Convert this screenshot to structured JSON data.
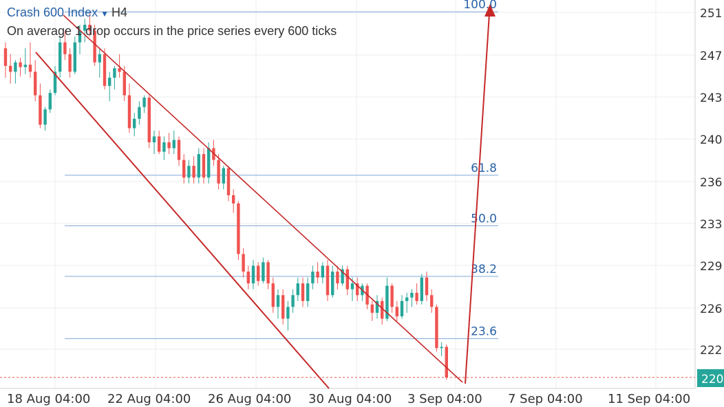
{
  "header": {
    "symbol": "Crash 600 Index",
    "timeframe": "H4",
    "description": "On average 1 drop occurs in the price series every 600 ticks"
  },
  "colors": {
    "up": "#26a69a",
    "down": "#ef5350",
    "line": "#c62828",
    "fib": "#7fa8d8",
    "fib_text": "#2962a8",
    "grid": "#eeeeee",
    "current_price_bg": "#26a69a"
  },
  "chart_data": {
    "type": "candlestick",
    "y_ticks": [
      "251",
      "247",
      "243",
      "240",
      "236",
      "233",
      "229",
      "226",
      "222"
    ],
    "current_price_label": "220",
    "x_ticks": [
      "18 Aug 04:00",
      "22 Aug 04:00",
      "26 Aug 04:00",
      "30 Aug 04:00",
      "3 Sep 04:00",
      "7 Sep 04:00",
      "11 Sep 04:00"
    ],
    "fib_levels": [
      {
        "label": "100.0",
        "price": 251.1
      },
      {
        "label": "61.8",
        "price": 237.2
      },
      {
        "label": "50.0",
        "price": 232.9
      },
      {
        "label": "38.2",
        "price": 228.6
      },
      {
        "label": "23.6",
        "price": 223.3
      }
    ],
    "ohlc": [
      [
        248.0,
        248.5,
        245.5,
        246.5
      ],
      [
        246.5,
        247.5,
        245.0,
        246.0
      ],
      [
        246.0,
        247.0,
        245.0,
        246.8
      ],
      [
        246.8,
        247.2,
        245.6,
        246.4
      ],
      [
        246.4,
        248.0,
        245.8,
        246.6
      ],
      [
        246.6,
        248.5,
        245.5,
        246.0
      ],
      [
        246.0,
        247.0,
        243.5,
        244.0
      ],
      [
        244.0,
        245.0,
        241.2,
        241.5
      ],
      [
        241.5,
        243.0,
        241.0,
        242.8
      ],
      [
        242.8,
        244.5,
        242.5,
        244.2
      ],
      [
        244.2,
        246.5,
        244.0,
        246.0
      ],
      [
        246.0,
        249.0,
        245.5,
        248.5
      ],
      [
        248.5,
        249.5,
        247.0,
        247.5
      ],
      [
        247.5,
        248.0,
        245.5,
        246.0
      ],
      [
        246.0,
        249.0,
        245.8,
        248.5
      ],
      [
        248.5,
        250.0,
        247.5,
        249.5
      ],
      [
        249.5,
        250.5,
        248.5,
        250.0
      ],
      [
        250.0,
        251.0,
        249.0,
        249.5
      ],
      [
        249.5,
        250.0,
        246.5,
        246.8
      ],
      [
        246.8,
        248.0,
        245.5,
        247.5
      ],
      [
        247.5,
        248.0,
        244.5,
        244.8
      ],
      [
        244.8,
        246.0,
        243.5,
        245.5
      ],
      [
        245.5,
        246.5,
        244.5,
        246.3
      ],
      [
        246.3,
        247.5,
        245.5,
        246.0
      ],
      [
        246.0,
        246.5,
        243.5,
        244.0
      ],
      [
        244.0,
        245.0,
        240.8,
        241.2
      ],
      [
        241.2,
        242.5,
        240.5,
        242.0
      ],
      [
        242.0,
        243.5,
        241.5,
        243.0
      ],
      [
        243.0,
        244.0,
        242.5,
        243.8
      ],
      [
        243.8,
        244.0,
        239.5,
        240.0
      ],
      [
        240.0,
        241.0,
        239.0,
        240.5
      ],
      [
        240.5,
        241.0,
        239.0,
        239.2
      ],
      [
        239.2,
        240.5,
        238.5,
        240.0
      ],
      [
        240.0,
        240.8,
        239.0,
        239.5
      ],
      [
        239.5,
        241.0,
        239.0,
        240.2
      ],
      [
        240.2,
        240.5,
        238.0,
        238.5
      ],
      [
        238.5,
        239.0,
        236.5,
        237.0
      ],
      [
        237.0,
        238.5,
        236.5,
        238.0
      ],
      [
        238.0,
        238.8,
        236.5,
        237.0
      ],
      [
        237.0,
        239.5,
        236.5,
        239.0
      ],
      [
        239.0,
        239.5,
        236.5,
        237.0
      ],
      [
        237.0,
        240.0,
        236.5,
        239.5
      ],
      [
        239.5,
        240.2,
        238.0,
        238.5
      ],
      [
        238.5,
        239.0,
        236.0,
        236.5
      ],
      [
        236.5,
        238.0,
        236.0,
        237.8
      ],
      [
        237.8,
        238.0,
        235.0,
        235.5
      ],
      [
        235.5,
        236.0,
        234.0,
        234.8
      ],
      [
        234.8,
        235.0,
        230.0,
        230.5
      ],
      [
        230.5,
        231.0,
        228.5,
        229.0
      ],
      [
        229.0,
        229.5,
        227.5,
        228.0
      ],
      [
        228.0,
        230.0,
        227.5,
        229.5
      ],
      [
        229.5,
        229.8,
        227.8,
        228.2
      ],
      [
        228.2,
        230.2,
        228.0,
        229.8
      ],
      [
        229.8,
        230.0,
        227.5,
        228.0
      ],
      [
        228.0,
        228.5,
        225.5,
        226.0
      ],
      [
        226.0,
        227.5,
        225.0,
        227.0
      ],
      [
        227.0,
        227.5,
        224.5,
        225.0
      ],
      [
        225.0,
        226.5,
        224.0,
        226.0
      ],
      [
        226.0,
        227.5,
        225.5,
        227.0
      ],
      [
        227.0,
        228.5,
        226.5,
        228.0
      ],
      [
        228.0,
        228.5,
        226.0,
        226.5
      ],
      [
        226.5,
        228.5,
        226.0,
        228.0
      ],
      [
        228.0,
        229.5,
        227.5,
        229.0
      ],
      [
        229.0,
        229.8,
        228.0,
        228.5
      ],
      [
        228.5,
        229.8,
        228.0,
        229.5
      ],
      [
        229.5,
        230.0,
        226.5,
        227.0
      ],
      [
        227.0,
        229.5,
        226.8,
        229.0
      ],
      [
        229.0,
        229.5,
        227.5,
        228.0
      ],
      [
        228.0,
        229.5,
        227.8,
        229.2
      ],
      [
        229.2,
        229.5,
        227.0,
        227.5
      ],
      [
        227.5,
        228.5,
        226.5,
        228.0
      ],
      [
        228.0,
        228.5,
        226.5,
        227.0
      ],
      [
        227.0,
        228.0,
        226.5,
        227.8
      ],
      [
        227.8,
        228.0,
        225.8,
        226.2
      ],
      [
        226.2,
        226.5,
        224.8,
        225.5
      ],
      [
        225.5,
        227.0,
        225.0,
        226.5
      ],
      [
        226.5,
        226.8,
        224.5,
        225.0
      ],
      [
        225.0,
        228.5,
        224.8,
        227.8
      ],
      [
        227.8,
        228.0,
        225.5,
        226.0
      ],
      [
        226.0,
        226.5,
        224.8,
        225.2
      ],
      [
        225.2,
        227.0,
        225.0,
        226.5
      ],
      [
        226.5,
        227.2,
        225.5,
        226.8
      ],
      [
        226.8,
        227.5,
        226.0,
        227.2
      ],
      [
        227.2,
        228.0,
        226.2,
        226.5
      ],
      [
        226.5,
        228.8,
        226.2,
        228.5
      ],
      [
        228.5,
        229.0,
        226.5,
        227.0
      ],
      [
        227.0,
        227.5,
        225.5,
        226.0
      ],
      [
        226.0,
        226.2,
        222.2,
        222.5
      ],
      [
        222.5,
        223.0,
        221.8,
        222.6
      ],
      [
        222.6,
        222.8,
        219.8,
        220.0
      ]
    ]
  }
}
